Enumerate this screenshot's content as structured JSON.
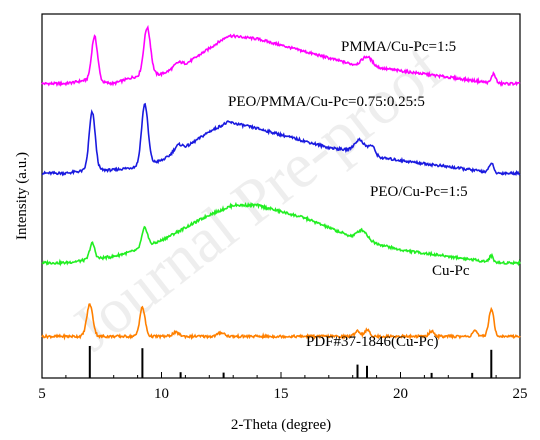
{
  "chart_data": {
    "type": "line",
    "xlabel": "2-Theta (degree)",
    "ylabel": "Intensity (a.u.)",
    "xlim": [
      5,
      25
    ],
    "xticks": [
      5,
      10,
      15,
      20,
      25
    ],
    "grid": false,
    "legend": "none",
    "watermark": "Journal Pre-proof",
    "series": [
      {
        "name": "PMMA/Cu-Pc=1:5",
        "color": "#ff00ff",
        "offset": 0.92,
        "baseline": [
          [
            5,
            0.0
          ],
          [
            6,
            0.0
          ],
          [
            6.8,
            0.01
          ],
          [
            8,
            0.0
          ],
          [
            8.8,
            0.02
          ],
          [
            10,
            0.03
          ],
          [
            11,
            0.06
          ],
          [
            12,
            0.11
          ],
          [
            12.8,
            0.15
          ],
          [
            14,
            0.14
          ],
          [
            15,
            0.12
          ],
          [
            16,
            0.1
          ],
          [
            17,
            0.08
          ],
          [
            18,
            0.06
          ],
          [
            19,
            0.05
          ],
          [
            20,
            0.04
          ],
          [
            21,
            0.03
          ],
          [
            22,
            0.02
          ],
          [
            23,
            0.01
          ],
          [
            24,
            0.0
          ],
          [
            25,
            0.0
          ]
        ],
        "peaks": [
          [
            7.2,
            0.14,
            0.18
          ],
          [
            9.4,
            0.15,
            0.2
          ],
          [
            10.7,
            0.015,
            0.25
          ],
          [
            18.6,
            0.03,
            0.3
          ],
          [
            23.9,
            0.03,
            0.12
          ]
        ]
      },
      {
        "name": "PEO/PMMA/Cu-Pc=0.75:0.25:5",
        "color": "#1a1adf",
        "offset": 0.64,
        "baseline": [
          [
            5,
            0.0
          ],
          [
            6,
            0.0
          ],
          [
            7,
            0.01
          ],
          [
            8,
            0.01
          ],
          [
            9,
            0.02
          ],
          [
            10,
            0.04
          ],
          [
            11,
            0.08
          ],
          [
            12,
            0.13
          ],
          [
            12.8,
            0.16
          ],
          [
            14,
            0.14
          ],
          [
            15,
            0.12
          ],
          [
            16,
            0.1
          ],
          [
            17,
            0.08
          ],
          [
            18,
            0.07
          ],
          [
            19,
            0.05
          ],
          [
            20,
            0.04
          ],
          [
            21,
            0.03
          ],
          [
            22,
            0.02
          ],
          [
            23,
            0.01
          ],
          [
            24,
            0.0
          ],
          [
            25,
            0.0
          ]
        ],
        "peaks": [
          [
            7.1,
            0.18,
            0.18
          ],
          [
            9.3,
            0.19,
            0.19
          ],
          [
            10.7,
            0.02,
            0.25
          ],
          [
            18.3,
            0.04,
            0.3
          ],
          [
            18.8,
            0.03,
            0.2
          ],
          [
            23.8,
            0.03,
            0.12
          ]
        ]
      },
      {
        "name": "PEO/Cu-Pc=1:5",
        "color": "#22ee22",
        "offset": 0.36,
        "baseline": [
          [
            5,
            0.0
          ],
          [
            6,
            0.0
          ],
          [
            7,
            0.01
          ],
          [
            8,
            0.02
          ],
          [
            9,
            0.04
          ],
          [
            10,
            0.07
          ],
          [
            11,
            0.11
          ],
          [
            12,
            0.15
          ],
          [
            13,
            0.18
          ],
          [
            14,
            0.18
          ],
          [
            15,
            0.16
          ],
          [
            16,
            0.14
          ],
          [
            17,
            0.11
          ],
          [
            18,
            0.08
          ],
          [
            19,
            0.06
          ],
          [
            20,
            0.04
          ],
          [
            21,
            0.03
          ],
          [
            22,
            0.02
          ],
          [
            23,
            0.01
          ],
          [
            24,
            0.0
          ],
          [
            25,
            0.0
          ]
        ],
        "peaks": [
          [
            7.1,
            0.05,
            0.15
          ],
          [
            9.3,
            0.06,
            0.17
          ],
          [
            18.4,
            0.03,
            0.3
          ],
          [
            23.8,
            0.02,
            0.12
          ]
        ]
      },
      {
        "name": "Cu-Pc",
        "color": "#ff8000",
        "offset": 0.13,
        "baseline": [
          [
            5,
            0.0
          ],
          [
            25,
            0.0
          ]
        ],
        "peaks": [
          [
            7.0,
            0.1,
            0.18
          ],
          [
            9.2,
            0.09,
            0.16
          ],
          [
            10.6,
            0.012,
            0.2
          ],
          [
            12.5,
            0.012,
            0.2
          ],
          [
            18.2,
            0.018,
            0.15
          ],
          [
            18.6,
            0.02,
            0.15
          ],
          [
            21.3,
            0.016,
            0.15
          ],
          [
            23.1,
            0.02,
            0.12
          ],
          [
            23.8,
            0.085,
            0.15
          ]
        ]
      }
    ],
    "reference": {
      "name": "PDF#37-1846(Cu-Pc)",
      "color": "#000000",
      "lines": [
        [
          7.0,
          1.0
        ],
        [
          9.2,
          0.93
        ],
        [
          10.8,
          0.18
        ],
        [
          12.6,
          0.17
        ],
        [
          18.2,
          0.42
        ],
        [
          18.6,
          0.38
        ],
        [
          21.3,
          0.16
        ],
        [
          23.0,
          0.16
        ],
        [
          23.8,
          0.88
        ]
      ]
    }
  }
}
